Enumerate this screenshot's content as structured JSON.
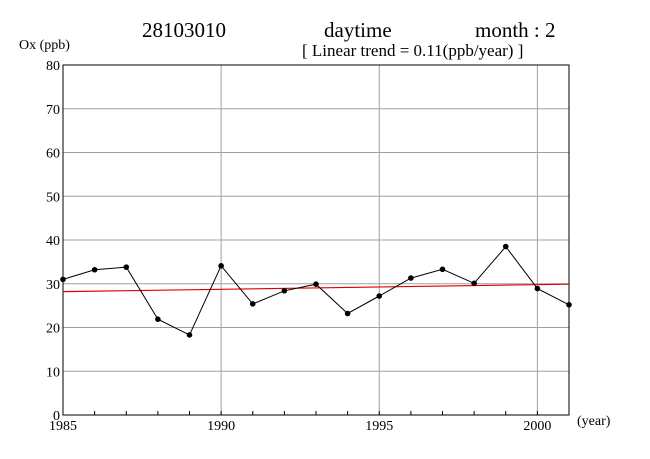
{
  "header": {
    "station": "28103010",
    "period": "daytime",
    "month": "month : 2",
    "trend": "[ Linear trend = 0.11(ppb/year) ]"
  },
  "colors": {
    "axis": "#000000",
    "grid": "#a0a0a0",
    "series": "#000000",
    "trend": "#e00000"
  },
  "chart_data": {
    "type": "line",
    "title": "28103010 daytime month : 2",
    "subtitle": "[ Linear trend = 0.11(ppb/year) ]",
    "xlabel": "(year)",
    "ylabel": "Ox (ppb)",
    "xlim": [
      1985,
      2001
    ],
    "ylim": [
      0,
      80
    ],
    "xticks": [
      1985,
      1990,
      1995,
      2000
    ],
    "yticks": [
      0,
      10,
      20,
      30,
      40,
      50,
      60,
      70,
      80
    ],
    "grid": true,
    "series": [
      {
        "x": [
          1985,
          1986,
          1987,
          1988,
          1989,
          1990,
          1991,
          1992,
          1993,
          1994,
          1995,
          1996,
          1997,
          1998,
          1999,
          2000,
          2001
        ],
        "values": [
          31.0,
          33.2,
          33.8,
          21.9,
          18.3,
          34.1,
          25.4,
          28.4,
          29.9,
          23.2,
          27.2,
          31.3,
          33.3,
          30.1,
          38.5,
          28.9,
          25.2
        ]
      }
    ],
    "trend_line": {
      "slope": 0.11,
      "x": [
        1985,
        2001
      ],
      "y": [
        28.2,
        29.9
      ]
    }
  }
}
